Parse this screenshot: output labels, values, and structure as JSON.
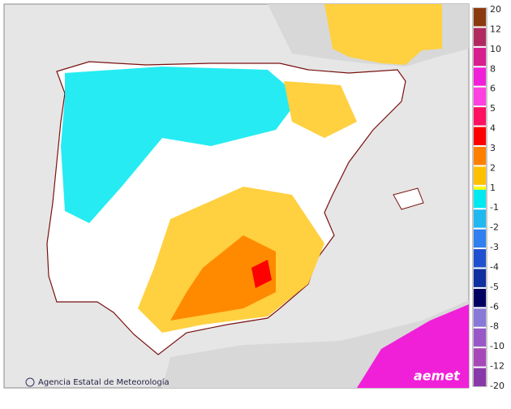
{
  "map": {
    "credit": "Agencia Estatal de Meteorología",
    "logo": "aemet"
  },
  "legend": [
    {
      "label": "20",
      "color": "#8b3a0f"
    },
    {
      "label": "12",
      "color": "#b02a60"
    },
    {
      "label": "10",
      "color": "#d81f8f"
    },
    {
      "label": "8",
      "color": "#f020d8"
    },
    {
      "label": "6",
      "color": "#ff40e0"
    },
    {
      "label": "5",
      "color": "#ff1060"
    },
    {
      "label": "4",
      "color": "#ff0000"
    },
    {
      "label": "3",
      "color": "#ff8000"
    },
    {
      "label": "2",
      "color": "#ffc000"
    },
    {
      "label": "1",
      "color": "#ffff00"
    },
    {
      "label": "-1",
      "color": "#00e8f0"
    },
    {
      "label": "-2",
      "color": "#20b8f0"
    },
    {
      "label": "-3",
      "color": "#3080f0"
    },
    {
      "label": "-4",
      "color": "#2050d0"
    },
    {
      "label": "-5",
      "color": "#1030a0"
    },
    {
      "label": "-6",
      "color": "#000060"
    },
    {
      "label": "-8",
      "color": "#8878d8"
    },
    {
      "label": "-10",
      "color": "#9858c8"
    },
    {
      "label": "-12",
      "color": "#a848b8"
    },
    {
      "label": "-20",
      "color": "#8838a8"
    }
  ]
}
